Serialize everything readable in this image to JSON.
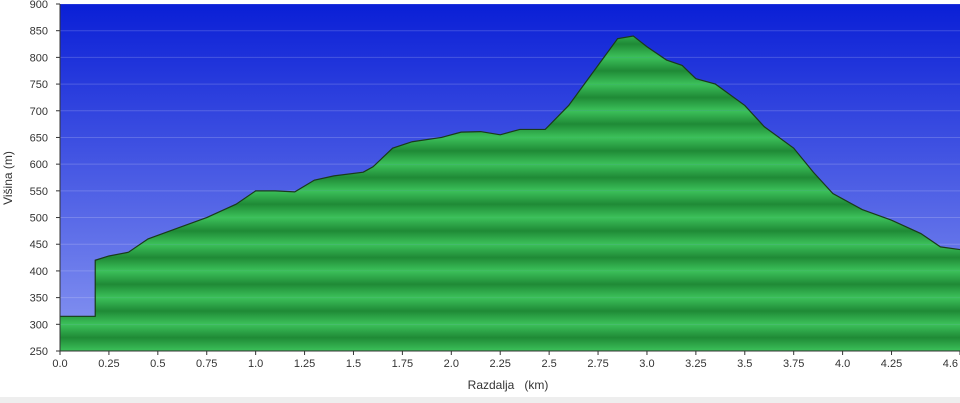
{
  "chart_data": {
    "type": "area",
    "title": "",
    "xlabel": "Razdalja   (km)",
    "ylabel": "Višina (m)",
    "xlim": [
      0,
      4.6
    ],
    "ylim": [
      250,
      900
    ],
    "x_ticks": [
      0.0,
      0.25,
      0.5,
      0.75,
      1.0,
      1.25,
      1.5,
      1.75,
      2.0,
      2.25,
      2.5,
      2.75,
      3.0,
      3.25,
      3.5,
      3.75,
      4.0,
      4.25,
      4.6
    ],
    "x_tick_labels": [
      "0.0",
      "0.25",
      "0.5",
      "0.75",
      "1.0",
      "1.25",
      "1.5",
      "1.75",
      "2.0",
      "2.25",
      "2.5",
      "2.75",
      "3.0",
      "3.25",
      "3.5",
      "3.75",
      "4.0",
      "4.25",
      "4.6"
    ],
    "y_ticks": [
      250,
      300,
      350,
      400,
      450,
      500,
      550,
      600,
      650,
      700,
      750,
      800,
      850,
      900
    ],
    "grid": true,
    "colors": {
      "sky_top": "#0a1fd6",
      "sky_bottom": "#8a98f2",
      "fill_light": "#3cc15a",
      "fill_dark": "#1f8a36",
      "outline": "#1a3a1a",
      "axis": "#333333"
    },
    "series": [
      {
        "x": [
          0.0,
          0.18,
          0.18,
          0.25,
          0.35,
          0.45,
          0.6,
          0.75,
          0.9,
          1.0,
          1.1,
          1.2,
          1.3,
          1.4,
          1.55,
          1.6,
          1.7,
          1.8,
          1.95,
          2.05,
          2.15,
          2.25,
          2.35,
          2.48,
          2.6,
          2.7,
          2.78,
          2.85,
          2.93,
          3.0,
          3.1,
          3.18,
          3.25,
          3.35,
          3.5,
          3.6,
          3.75,
          3.85,
          3.95,
          4.1,
          4.25,
          4.4,
          4.5,
          4.6
        ],
        "y": [
          315,
          315,
          420,
          428,
          435,
          460,
          480,
          500,
          525,
          550,
          550,
          548,
          570,
          578,
          585,
          595,
          630,
          642,
          650,
          660,
          661,
          655,
          665,
          665,
          710,
          760,
          800,
          835,
          840,
          820,
          795,
          785,
          760,
          750,
          710,
          670,
          630,
          585,
          545,
          515,
          495,
          470,
          445,
          440
        ]
      }
    ]
  }
}
